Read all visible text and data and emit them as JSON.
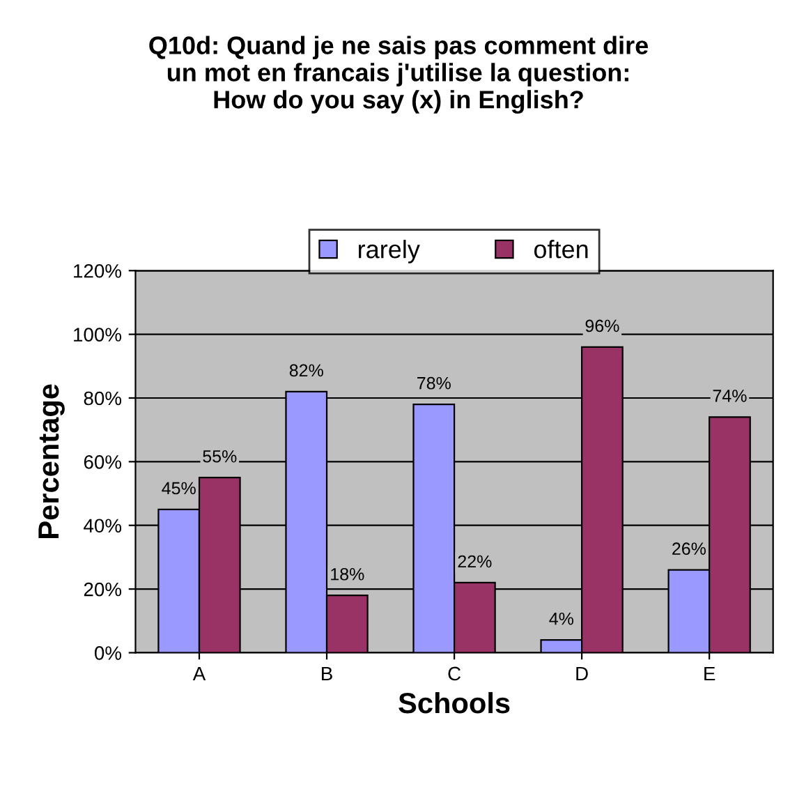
{
  "chart_data": {
    "type": "bar",
    "title": "Q10d: Quand je ne sais pas comment dire\nun mot en francais j'utilise la question:\nHow do you say (x) in English?",
    "xlabel": "Schools",
    "ylabel": "Percentage",
    "categories": [
      "A",
      "B",
      "C",
      "D",
      "E"
    ],
    "series": [
      {
        "name": "rarely",
        "color": "#9999ff",
        "values": [
          45,
          82,
          78,
          4,
          26
        ],
        "value_labels": [
          "45%",
          "82%",
          "78%",
          "4%",
          "26%"
        ]
      },
      {
        "name": "often",
        "color": "#993366",
        "values": [
          55,
          18,
          22,
          96,
          74
        ],
        "value_labels": [
          "55%",
          "18%",
          "22%",
          "96%",
          "74%"
        ]
      }
    ],
    "ylim": [
      0,
      120
    ],
    "yticks": [
      {
        "value": 0,
        "label": "0%"
      },
      {
        "value": 20,
        "label": "20%"
      },
      {
        "value": 40,
        "label": "40%"
      },
      {
        "value": 60,
        "label": "60%"
      },
      {
        "value": 80,
        "label": "80%"
      },
      {
        "value": 100,
        "label": "100%"
      },
      {
        "value": 120,
        "label": "120%"
      }
    ],
    "grid": "y",
    "legend": "top"
  }
}
